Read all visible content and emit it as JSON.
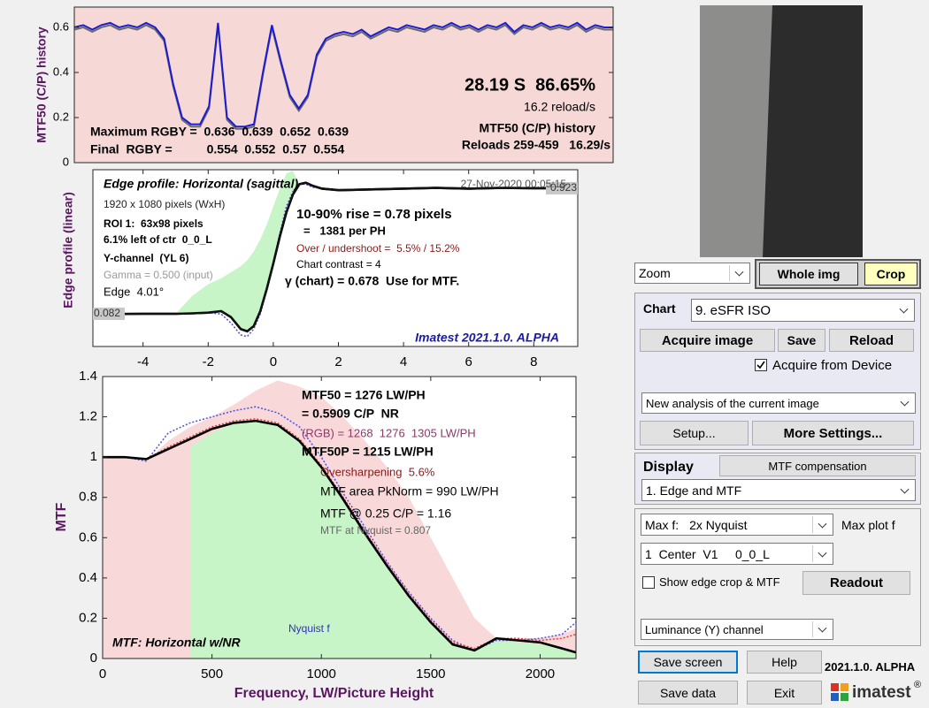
{
  "chart_data": [
    {
      "type": "line",
      "ylabel": "MTF50 (C/P) history",
      "background": "#f6d9d7",
      "ylim": [
        0,
        0.69
      ],
      "yticks": [
        0,
        0.2,
        0.4,
        0.6
      ],
      "series": [
        {
          "color": "#6a6a6a",
          "style": "line",
          "values": [
            0.59,
            0.6,
            0.58,
            0.6,
            0.61,
            0.59,
            0.6,
            0.59,
            0.61,
            0.59,
            0.54,
            0.34,
            0.19,
            0.16,
            0.16,
            0.24,
            0.61,
            0.19,
            0.15,
            0.15,
            0.16,
            0.39,
            0.6,
            0.44,
            0.29,
            0.23,
            0.29,
            0.47,
            0.54,
            0.56,
            0.57,
            0.56,
            0.58,
            0.55,
            0.57,
            0.59,
            0.58,
            0.6,
            0.59,
            0.58,
            0.6,
            0.59,
            0.61,
            0.59,
            0.6,
            0.58,
            0.6,
            0.59,
            0.61,
            0.57,
            0.6,
            0.59,
            0.61,
            0.59,
            0.6,
            0.59,
            0.61,
            0.58,
            0.6,
            0.59,
            0.59
          ]
        },
        {
          "color": "#1c1cd2",
          "style": "line",
          "values": [
            0.6,
            0.61,
            0.59,
            0.61,
            0.62,
            0.6,
            0.61,
            0.6,
            0.62,
            0.6,
            0.55,
            0.35,
            0.2,
            0.17,
            0.17,
            0.25,
            0.62,
            0.2,
            0.16,
            0.16,
            0.17,
            0.4,
            0.61,
            0.45,
            0.3,
            0.24,
            0.3,
            0.48,
            0.55,
            0.57,
            0.58,
            0.57,
            0.59,
            0.56,
            0.58,
            0.6,
            0.59,
            0.61,
            0.6,
            0.59,
            0.61,
            0.6,
            0.62,
            0.6,
            0.61,
            0.59,
            0.61,
            0.6,
            0.62,
            0.58,
            0.61,
            0.6,
            0.62,
            0.6,
            0.61,
            0.6,
            0.62,
            0.59,
            0.61,
            0.6,
            0.6
          ]
        }
      ],
      "annotations": [
        "28.19 S  86.65%",
        "16.2 reload/s",
        "MTF50 (C/P) history",
        "Reloads 259-459   16.29/s",
        "Maximum RGBY =  0.636  0.639  0.652  0.639",
        "Final  RGBY =          0.554  0.552  0.57  0.554"
      ]
    },
    {
      "type": "line",
      "ylabel": "Edge profile (linear)",
      "background": "#ffffff",
      "xlim": [
        -5.54,
        9.35
      ],
      "ylim": [
        -0.137,
        1.047
      ],
      "xticks": [
        -4,
        -2,
        0,
        2,
        4,
        6,
        8
      ],
      "x": [
        -5.5,
        -5,
        -4,
        -3,
        -2.5,
        -2,
        -1.6,
        -1.3,
        -1,
        -0.8,
        -0.6,
        -0.4,
        -0.2,
        0,
        0.2,
        0.4,
        0.6,
        0.8,
        1,
        1.2,
        1.5,
        2,
        3,
        4,
        5,
        6,
        7,
        8,
        9.3
      ],
      "series": [
        {
          "color": "#111111",
          "style": "line",
          "values": [
            0.08,
            0.08,
            0.082,
            0.082,
            0.085,
            0.09,
            0.1,
            0.06,
            -0.02,
            -0.035,
            0.0,
            0.1,
            0.25,
            0.42,
            0.6,
            0.76,
            0.88,
            0.95,
            0.96,
            0.94,
            0.92,
            0.91,
            0.915,
            0.92,
            0.925,
            0.92,
            0.925,
            0.923,
            0.923
          ]
        },
        {
          "color": "#c8f5c8",
          "style": "area",
          "fill_to": 0,
          "values": [
            null,
            null,
            null,
            0.082,
            0.2,
            0.28,
            0.32,
            0.36,
            0.4,
            0.44,
            0.5,
            0.58,
            0.68,
            0.8,
            0.92,
            1.02,
            1.04,
            0.95,
            null,
            null,
            null,
            null,
            null,
            null,
            null,
            null,
            null,
            null,
            null
          ]
        },
        {
          "color": "#4a4ae0",
          "style": "dotted",
          "values": [
            0.08,
            0.08,
            0.08,
            0.08,
            0.085,
            0.09,
            0.08,
            0.02,
            -0.06,
            -0.07,
            -0.02,
            0.08,
            0.24,
            0.42,
            0.62,
            0.8,
            0.9,
            0.95,
            0.95,
            0.93,
            0.92,
            0.91,
            0.915,
            0.92,
            0.925,
            0.92,
            0.925,
            0.923,
            0.923
          ]
        },
        {
          "color": "#111111",
          "style": "line",
          "values": [
            0.08,
            0.08,
            0.082,
            0.082,
            0.085,
            0.09,
            0.1,
            0.06,
            -0.02,
            -0.035,
            0.0,
            0.1,
            0.25,
            0.42,
            0.6,
            0.76,
            0.88,
            0.95,
            0.96,
            0.94,
            0.92,
            0.91,
            0.915,
            0.92,
            0.925,
            0.92,
            0.925,
            0.923,
            0.923
          ]
        }
      ],
      "level_labels": [
        0.082,
        0.923
      ],
      "annotations": [
        "Edge profile: Horizontal (sagittal)",
        "27-Nov-2020 00:05:15",
        "1920 x 1080 pixels (WxH)",
        "ROI 1:  63x98 pixels",
        "6.1% left of ctr  0_0_L",
        "Y-channel  (YL 6)",
        "Gamma = 0.500 (input)",
        "Edge  4.01°",
        "10-90% rise = 0.78 pixels",
        "=   1381 per PH",
        "Over / undershoot =  5.5% / 15.2%",
        "Chart contrast = 4",
        "γ (chart) = 0.678  Use for MTF.",
        "Imatest 2021.1.0. ALPHA"
      ]
    },
    {
      "type": "line",
      "ylabel": "MTF",
      "xlabel": "Frequency, LW/Picture Height",
      "background": "#ffffff",
      "xlim": [
        0,
        2164
      ],
      "ylim": [
        0,
        1.4
      ],
      "xticks": [
        0,
        500,
        1000,
        1500,
        2000
      ],
      "yticks": [
        0,
        0.2,
        0.4,
        0.6,
        0.8,
        1,
        1.2,
        1.4
      ],
      "x": [
        0,
        100,
        200,
        300,
        400,
        500,
        600,
        700,
        800,
        900,
        1000,
        1100,
        1200,
        1300,
        1400,
        1500,
        1600,
        1700,
        1800,
        1900,
        2000,
        2100,
        2164
      ],
      "series": [
        {
          "color": "#f8d8d8",
          "style": "area",
          "values": [
            1.0,
            1.0,
            0.98,
            1.08,
            1.15,
            1.2,
            1.26,
            1.33,
            1.38,
            1.35,
            1.3,
            1.2,
            1.08,
            0.95,
            0.8,
            0.6,
            0.4,
            0.2,
            0.1,
            0.1,
            0.1,
            0.12,
            0.15
          ]
        },
        {
          "color": "#c8f5c8",
          "style": "area",
          "values": [
            null,
            null,
            null,
            null,
            1.05,
            1.12,
            1.17,
            1.18,
            1.16,
            1.08,
            0.95,
            0.79,
            0.62,
            0.46,
            0.31,
            0.18,
            0.07,
            0.04,
            0.09,
            0.08,
            0.07,
            0.05,
            0.03
          ]
        },
        {
          "color": "#5050e0",
          "style": "dotted",
          "values": [
            1.0,
            1.0,
            0.98,
            1.12,
            1.17,
            1.2,
            1.23,
            1.25,
            1.22,
            1.15,
            1.0,
            0.82,
            0.65,
            0.48,
            0.33,
            0.2,
            0.09,
            0.04,
            0.09,
            0.09,
            0.1,
            0.12,
            0.18
          ]
        },
        {
          "color": "#e04040",
          "style": "dotted",
          "values": [
            1.0,
            1.0,
            0.99,
            1.05,
            1.1,
            1.15,
            1.18,
            1.19,
            1.17,
            1.09,
            0.96,
            0.8,
            0.63,
            0.47,
            0.32,
            0.19,
            0.08,
            0.05,
            0.1,
            0.1,
            0.09,
            0.1,
            0.12
          ]
        },
        {
          "color": "#000000",
          "style": "line",
          "values": [
            1.0,
            1.0,
            0.99,
            1.04,
            1.09,
            1.14,
            1.17,
            1.18,
            1.16,
            1.08,
            0.95,
            0.79,
            0.62,
            0.46,
            0.31,
            0.18,
            0.07,
            0.04,
            0.1,
            0.09,
            0.08,
            0.05,
            0.03
          ]
        }
      ],
      "annotations": [
        "MTF50 = 1276 LW/PH",
        "= 0.5909 C/P  NR",
        "(RGB) = 1268  1276  1305 LW/PH",
        "MTF50P = 1215 LW/PH",
        "Oversharpening  5.6%",
        "MTF area PkNorm = 990 LW/PH",
        "MTF @ 0.25 C/P = 1.16",
        "MTF at Nyquist = 0.807",
        "Nyquist f",
        "MTF: Horizontal w/NR"
      ]
    }
  ],
  "controls": {
    "zoom": "Zoom",
    "whole_img": "Whole img",
    "crop": "Crop",
    "chart_label": "Chart",
    "chart_select": "9. eSFR ISO",
    "acquire_image": "Acquire image",
    "save": "Save",
    "reload": "Reload",
    "acquire_from_device": "Acquire from Device",
    "analysis_select": "New analysis of the current image",
    "setup": "Setup...",
    "more_settings": "More Settings...",
    "display": "Display",
    "mtf_compensation": "MTF compensation",
    "display_select": "1. Edge and MTF",
    "max_f_label": "Max f:",
    "max_f_select": "2x Nyquist",
    "max_plot_f": "Max plot f",
    "roi_select": "1  Center  V1     0_0_L",
    "show_edge_crop": "Show edge crop & MTF",
    "readout": "Readout",
    "channel_select": "Luminance (Y) channel",
    "save_screen": "Save screen",
    "help": "Help",
    "version": "2021.1.0. ALPHA",
    "save_data": "Save data",
    "exit": "Exit",
    "logo": "imatest",
    "registered": "®"
  }
}
